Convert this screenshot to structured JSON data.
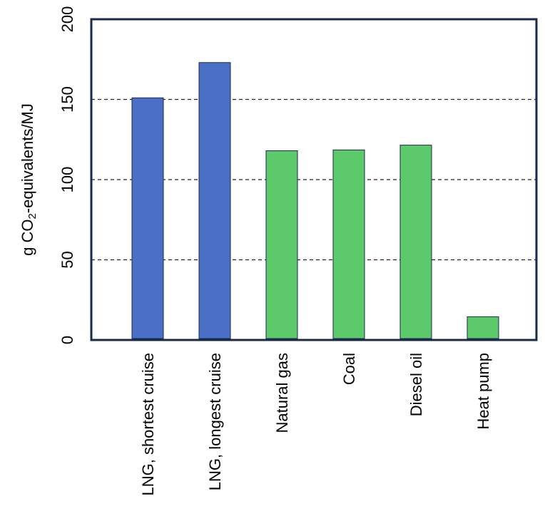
{
  "chart_data": {
    "type": "bar",
    "title": "",
    "xlabel": "",
    "ylabel": {
      "prefix": "g CO",
      "subscript": "2",
      "suffix": "-equivalents/MJ"
    },
    "ylim": [
      0,
      200
    ],
    "yticks": [
      "0",
      "50",
      "100",
      "150",
      "200"
    ],
    "categories": [
      "LNG, shortest cruise",
      "LNG, longest cruise",
      "Natural gas",
      "Coal",
      "Diesel oil",
      "Heat pump"
    ],
    "values": [
      151,
      173,
      118,
      118.5,
      121.5,
      14.5
    ],
    "bar_colors": [
      "#4a6fc4",
      "#4a6fc4",
      "#5cc96a",
      "#5cc96a",
      "#5cc96a",
      "#5cc96a"
    ],
    "gridlines": [
      50,
      100,
      150
    ],
    "grid": "dashed horizontal",
    "legend": "none",
    "frame_color": "#1a2a4a"
  }
}
